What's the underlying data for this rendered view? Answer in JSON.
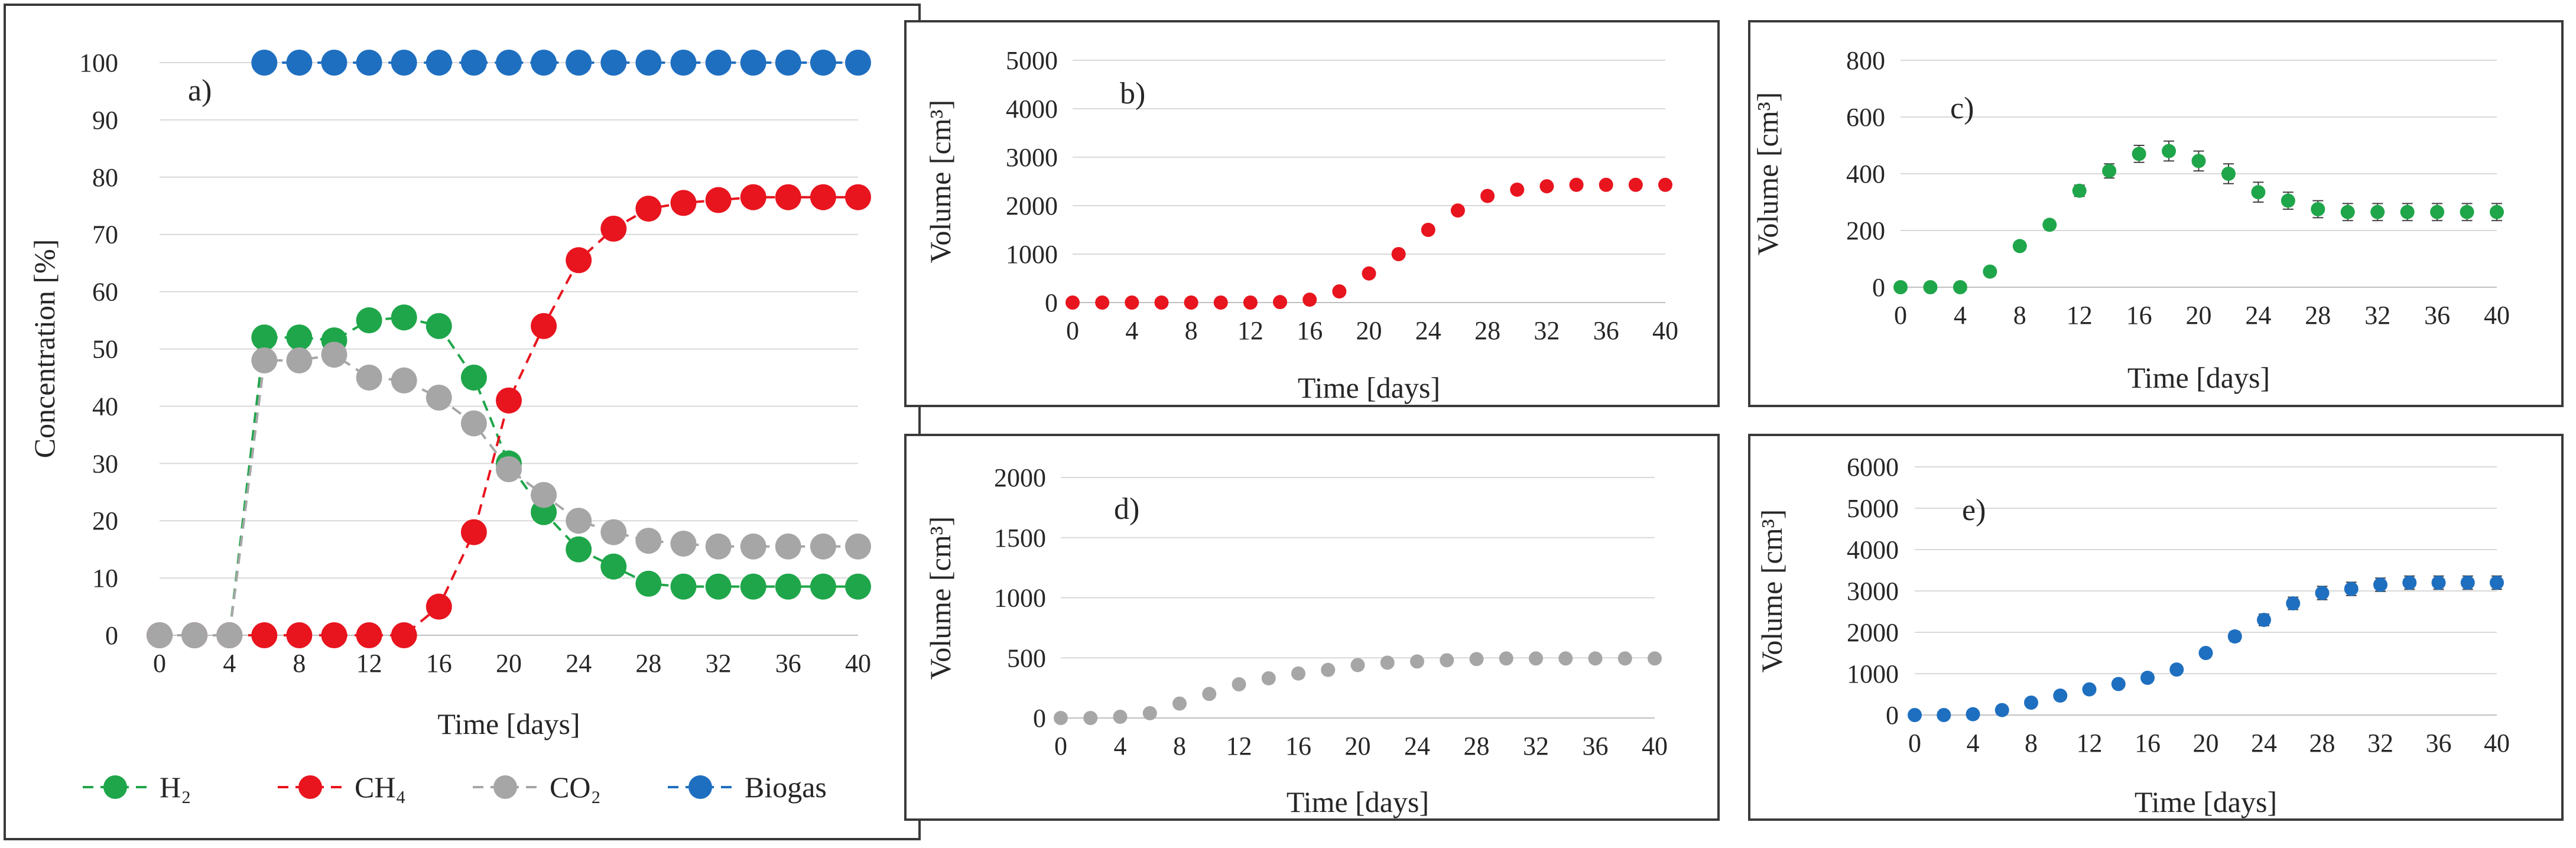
{
  "chart_data": [
    {
      "id": "a",
      "type": "line",
      "panel_label": "a)",
      "xlabel": "Time [days]",
      "ylabel": "Concentration [%]",
      "xlim": [
        0,
        40
      ],
      "ylim": [
        0,
        100
      ],
      "xticks": [
        0,
        4,
        8,
        12,
        16,
        20,
        24,
        28,
        32,
        36,
        40
      ],
      "yticks": [
        0,
        10,
        20,
        30,
        40,
        50,
        60,
        70,
        80,
        90,
        100
      ],
      "grid": true,
      "legend_position": "bottom",
      "series": [
        {
          "name": "H₂",
          "color": "#1fa64a",
          "x": [
            0,
            2,
            4,
            6,
            8,
            10,
            12,
            14,
            16,
            18,
            20,
            22,
            24,
            26,
            28,
            30,
            32,
            34,
            36,
            38,
            40
          ],
          "values": [
            0,
            0,
            0,
            52,
            52,
            51.5,
            55,
            55.5,
            54,
            45,
            30,
            21.5,
            15,
            12,
            9,
            8.5,
            8.5,
            8.5,
            8.5,
            8.5,
            8.5
          ]
        },
        {
          "name": "CH₄",
          "color": "#e8141e",
          "x": [
            0,
            2,
            4,
            6,
            8,
            10,
            12,
            14,
            16,
            18,
            20,
            22,
            24,
            26,
            28,
            30,
            32,
            34,
            36,
            38,
            40
          ],
          "values": [
            0,
            0,
            0,
            0,
            0,
            0,
            0,
            0,
            5,
            18,
            41,
            54,
            65.5,
            71,
            74.5,
            75.5,
            76,
            76.5,
            76.5,
            76.5,
            76.5
          ]
        },
        {
          "name": "CO₂",
          "color": "#a6a6a6",
          "x": [
            0,
            2,
            4,
            6,
            8,
            10,
            12,
            14,
            16,
            18,
            20,
            22,
            24,
            26,
            28,
            30,
            32,
            34,
            36,
            38,
            40
          ],
          "values": [
            0,
            0,
            0,
            48,
            48,
            49,
            45,
            44.5,
            41.5,
            37,
            29,
            24.5,
            20,
            18,
            16.5,
            16,
            15.5,
            15.5,
            15.5,
            15.5,
            15.5
          ]
        },
        {
          "name": "Biogas",
          "color": "#1f6fc0",
          "x": [
            6,
            8,
            10,
            12,
            14,
            16,
            18,
            20,
            22,
            24,
            26,
            28,
            30,
            32,
            34,
            36,
            38,
            40
          ],
          "values": [
            100,
            100,
            100,
            100,
            100,
            100,
            100,
            100,
            100,
            100,
            100,
            100,
            100,
            100,
            100,
            100,
            100,
            100
          ]
        }
      ]
    },
    {
      "id": "b",
      "type": "scatter",
      "panel_label": "b)",
      "xlabel": "Time [days]",
      "ylabel": "Volume [cm³]",
      "xlim": [
        0,
        40
      ],
      "ylim": [
        0,
        5000
      ],
      "xticks": [
        0,
        4,
        8,
        12,
        16,
        20,
        24,
        28,
        32,
        36,
        40
      ],
      "yticks": [
        0,
        1000,
        2000,
        3000,
        4000,
        5000
      ],
      "grid": true,
      "color": "#e8141e",
      "x": [
        0,
        2,
        4,
        6,
        8,
        10,
        12,
        14,
        16,
        18,
        20,
        22,
        24,
        26,
        28,
        30,
        32,
        34,
        36,
        38,
        40
      ],
      "values": [
        0,
        0,
        0,
        0,
        0,
        0,
        0,
        10,
        60,
        230,
        600,
        1000,
        1500,
        1900,
        2200,
        2330,
        2400,
        2430,
        2430,
        2430,
        2430
      ],
      "error": [
        0,
        0,
        0,
        0,
        0,
        0,
        0,
        0,
        20,
        40,
        60,
        70,
        80,
        80,
        80,
        80,
        80,
        80,
        80,
        80,
        80
      ]
    },
    {
      "id": "c",
      "type": "scatter",
      "panel_label": "c)",
      "xlabel": "Time [days]",
      "ylabel": "Volume [cm³]",
      "xlim": [
        0,
        40
      ],
      "ylim": [
        0,
        800
      ],
      "xticks": [
        0,
        4,
        8,
        12,
        16,
        20,
        24,
        28,
        32,
        36,
        40
      ],
      "yticks": [
        0,
        200,
        400,
        600,
        800
      ],
      "grid": true,
      "color": "#1fa64a",
      "x": [
        0,
        2,
        4,
        6,
        8,
        10,
        12,
        14,
        16,
        18,
        20,
        22,
        24,
        26,
        28,
        30,
        32,
        34,
        36,
        38,
        40
      ],
      "values": [
        0,
        0,
        0,
        55,
        145,
        220,
        340,
        410,
        470,
        480,
        445,
        400,
        335,
        305,
        275,
        265,
        265,
        265,
        265,
        265,
        265
      ],
      "error": [
        0,
        0,
        0,
        10,
        15,
        15,
        20,
        25,
        30,
        35,
        35,
        35,
        35,
        30,
        30,
        30,
        30,
        30,
        30,
        30,
        30
      ]
    },
    {
      "id": "d",
      "type": "scatter",
      "panel_label": "d)",
      "xlabel": "Time [days]",
      "ylabel": "Volume [cm³]",
      "xlim": [
        0,
        40
      ],
      "ylim": [
        0,
        2000
      ],
      "xticks": [
        0,
        4,
        8,
        12,
        16,
        20,
        24,
        28,
        32,
        36,
        40
      ],
      "yticks": [
        0,
        500,
        1000,
        1500,
        2000
      ],
      "grid": true,
      "color": "#a6a6a6",
      "x": [
        0,
        2,
        4,
        6,
        8,
        10,
        12,
        14,
        16,
        18,
        20,
        22,
        24,
        26,
        28,
        30,
        32,
        34,
        36,
        38,
        40
      ],
      "values": [
        0,
        0,
        10,
        40,
        120,
        200,
        280,
        330,
        370,
        400,
        440,
        460,
        470,
        480,
        490,
        495,
        495,
        495,
        495,
        495,
        495
      ],
      "error": [
        0,
        0,
        5,
        10,
        15,
        20,
        25,
        25,
        25,
        25,
        25,
        25,
        25,
        25,
        25,
        25,
        25,
        25,
        25,
        25,
        25
      ]
    },
    {
      "id": "e",
      "type": "scatter",
      "panel_label": "e)",
      "xlabel": "Time [days]",
      "ylabel": "Volume [cm³]",
      "xlim": [
        0,
        40
      ],
      "ylim": [
        0,
        6000
      ],
      "xticks": [
        0,
        4,
        8,
        12,
        16,
        20,
        24,
        28,
        32,
        36,
        40
      ],
      "yticks": [
        0,
        1000,
        2000,
        3000,
        4000,
        5000,
        6000
      ],
      "grid": true,
      "color": "#1f6fc0",
      "x": [
        0,
        2,
        4,
        6,
        8,
        10,
        12,
        14,
        16,
        18,
        20,
        22,
        24,
        26,
        28,
        30,
        32,
        34,
        36,
        38,
        40
      ],
      "values": [
        0,
        0,
        20,
        120,
        300,
        470,
        620,
        750,
        900,
        1100,
        1500,
        1900,
        2300,
        2700,
        2950,
        3050,
        3150,
        3200,
        3200,
        3200,
        3200
      ],
      "error": [
        0,
        0,
        10,
        20,
        40,
        50,
        60,
        70,
        80,
        90,
        100,
        120,
        140,
        150,
        160,
        160,
        160,
        160,
        160,
        160,
        160
      ]
    }
  ]
}
